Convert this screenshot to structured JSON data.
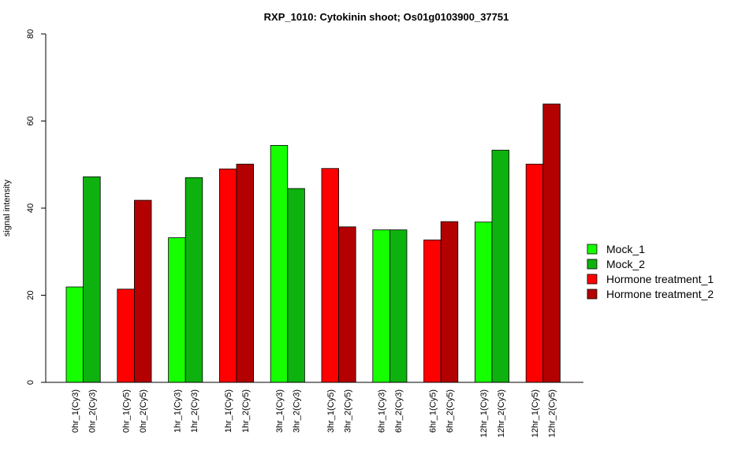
{
  "chart_data": {
    "type": "bar",
    "title": "RXP_1010: Cytokinin shoot; Os01g0103900_37751",
    "xlabel": "",
    "ylabel": "signal intensity",
    "ylim": [
      0,
      80
    ],
    "yticks": [
      0,
      20,
      40,
      60,
      80
    ],
    "grid": false,
    "legend_position": "right",
    "series": [
      {
        "name": "Mock_1",
        "color": "#16FF00"
      },
      {
        "name": "Mock_2",
        "color": "#0EB20E"
      },
      {
        "name": "Hormone treatment_1",
        "color": "#FF0000"
      },
      {
        "name": "Hormone treatment_2",
        "color": "#B30000"
      }
    ],
    "bars": [
      {
        "label": "0hr_1(Cy3)",
        "value": 21.9,
        "series": "Mock_1"
      },
      {
        "label": "0hr_2(Cy3)",
        "value": 47.2,
        "series": "Mock_2"
      },
      {
        "label": "0hr_1(Cy5)",
        "value": 21.4,
        "series": "Hormone treatment_1"
      },
      {
        "label": "0hr_2(Cy5)",
        "value": 41.8,
        "series": "Hormone treatment_2"
      },
      {
        "label": "1hr_1(Cy3)",
        "value": 33.2,
        "series": "Mock_1"
      },
      {
        "label": "1hr_2(Cy3)",
        "value": 47.0,
        "series": "Mock_2"
      },
      {
        "label": "1hr_1(Cy5)",
        "value": 49.0,
        "series": "Hormone treatment_1"
      },
      {
        "label": "1hr_2(Cy5)",
        "value": 50.1,
        "series": "Hormone treatment_2"
      },
      {
        "label": "3hr_1(Cy3)",
        "value": 54.4,
        "series": "Mock_1"
      },
      {
        "label": "3hr_2(Cy3)",
        "value": 44.5,
        "series": "Mock_2"
      },
      {
        "label": "3hr_1(Cy5)",
        "value": 49.1,
        "series": "Hormone treatment_1"
      },
      {
        "label": "3hr_2(Cy5)",
        "value": 35.7,
        "series": "Hormone treatment_2"
      },
      {
        "label": "6hr_1(Cy3)",
        "value": 35.0,
        "series": "Mock_1"
      },
      {
        "label": "6hr_2(Cy3)",
        "value": 35.0,
        "series": "Mock_2"
      },
      {
        "label": "6hr_1(Cy5)",
        "value": 32.7,
        "series": "Hormone treatment_1"
      },
      {
        "label": "6hr_2(Cy5)",
        "value": 36.9,
        "series": "Hormone treatment_2"
      },
      {
        "label": "12hr_1(Cy3)",
        "value": 36.8,
        "series": "Mock_1"
      },
      {
        "label": "12hr_2(Cy3)",
        "value": 53.3,
        "series": "Mock_2"
      },
      {
        "label": "12hr_1(Cy5)",
        "value": 50.1,
        "series": "Hormone treatment_1"
      },
      {
        "label": "12hr_2(Cy5)",
        "value": 63.9,
        "series": "Hormone treatment_2"
      }
    ]
  }
}
